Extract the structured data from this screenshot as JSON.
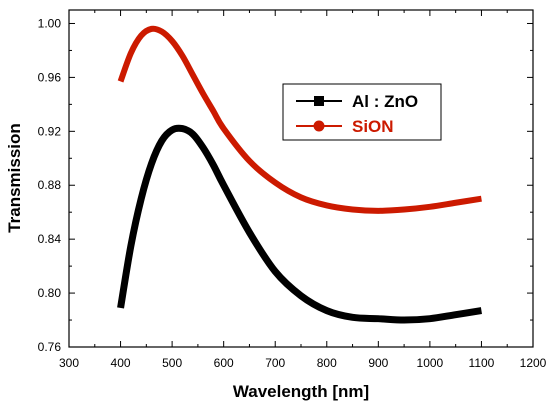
{
  "chart_data": {
    "type": "line",
    "title": "",
    "xlabel": "Wavelength [nm]",
    "ylabel": "Transmission",
    "xlim": [
      300,
      1200
    ],
    "ylim": [
      0.76,
      1.01
    ],
    "x_ticks": [
      300,
      400,
      500,
      600,
      700,
      800,
      900,
      1000,
      1100,
      1200
    ],
    "y_ticks": [
      0.76,
      0.8,
      0.84,
      0.88,
      0.92,
      0.96,
      1.0
    ],
    "y_tick_labels": [
      "0.76",
      "0.80",
      "0.84",
      "0.88",
      "0.92",
      "0.96",
      "1.00"
    ],
    "grid": false,
    "legend_position": "top-right",
    "series": [
      {
        "name": "Al : ZnO",
        "color": "#000000",
        "marker": "square",
        "x": [
          400,
          420,
          440,
          460,
          480,
          500,
          520,
          540,
          560,
          580,
          600,
          650,
          700,
          750,
          800,
          850,
          900,
          950,
          1000,
          1050,
          1100
        ],
        "y": [
          0.789,
          0.835,
          0.87,
          0.896,
          0.913,
          0.921,
          0.922,
          0.918,
          0.908,
          0.895,
          0.88,
          0.845,
          0.816,
          0.798,
          0.787,
          0.782,
          0.781,
          0.78,
          0.781,
          0.784,
          0.787
        ]
      },
      {
        "name": "SiON",
        "color": "#cc1a00",
        "marker": "circle",
        "x": [
          400,
          420,
          440,
          460,
          480,
          500,
          520,
          540,
          560,
          580,
          600,
          650,
          700,
          750,
          800,
          850,
          900,
          950,
          1000,
          1050,
          1100
        ],
        "y": [
          0.957,
          0.978,
          0.991,
          0.996,
          0.994,
          0.987,
          0.976,
          0.962,
          0.948,
          0.935,
          0.922,
          0.898,
          0.882,
          0.871,
          0.865,
          0.862,
          0.861,
          0.862,
          0.864,
          0.867,
          0.87
        ]
      }
    ]
  }
}
